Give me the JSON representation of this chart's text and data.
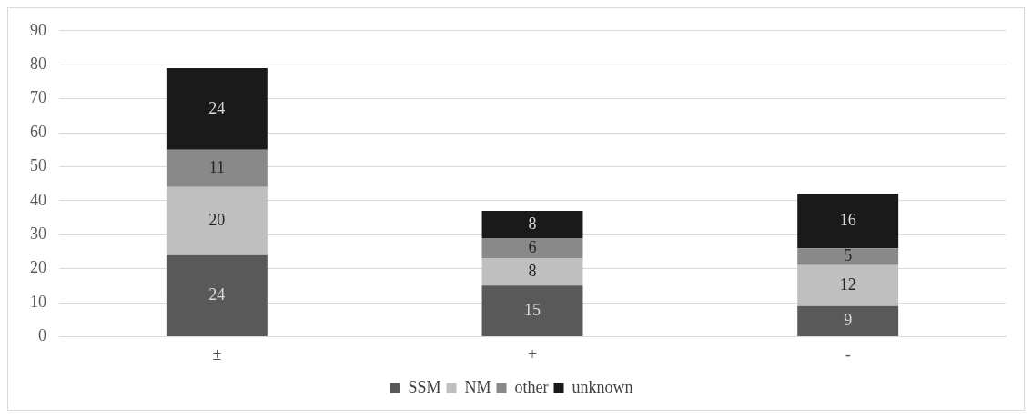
{
  "chart_data": {
    "type": "bar",
    "stacked": true,
    "categories": [
      "±",
      "+",
      "-"
    ],
    "series": [
      {
        "name": "SSM",
        "color": "#595959",
        "values": [
          24,
          15,
          9
        ]
      },
      {
        "name": "NM",
        "color": "#bfbfbf",
        "values": [
          20,
          8,
          12
        ]
      },
      {
        "name": "other",
        "color": "#898989",
        "values": [
          11,
          6,
          5
        ]
      },
      {
        "name": "unknown",
        "color": "#1a1a1a",
        "values": [
          24,
          8,
          16
        ]
      }
    ],
    "ylim": [
      0,
      90
    ],
    "yticks": [
      0,
      10,
      20,
      30,
      40,
      50,
      60,
      70,
      80,
      90
    ],
    "grid": "y",
    "legend": "bottom",
    "data_labels": true
  }
}
